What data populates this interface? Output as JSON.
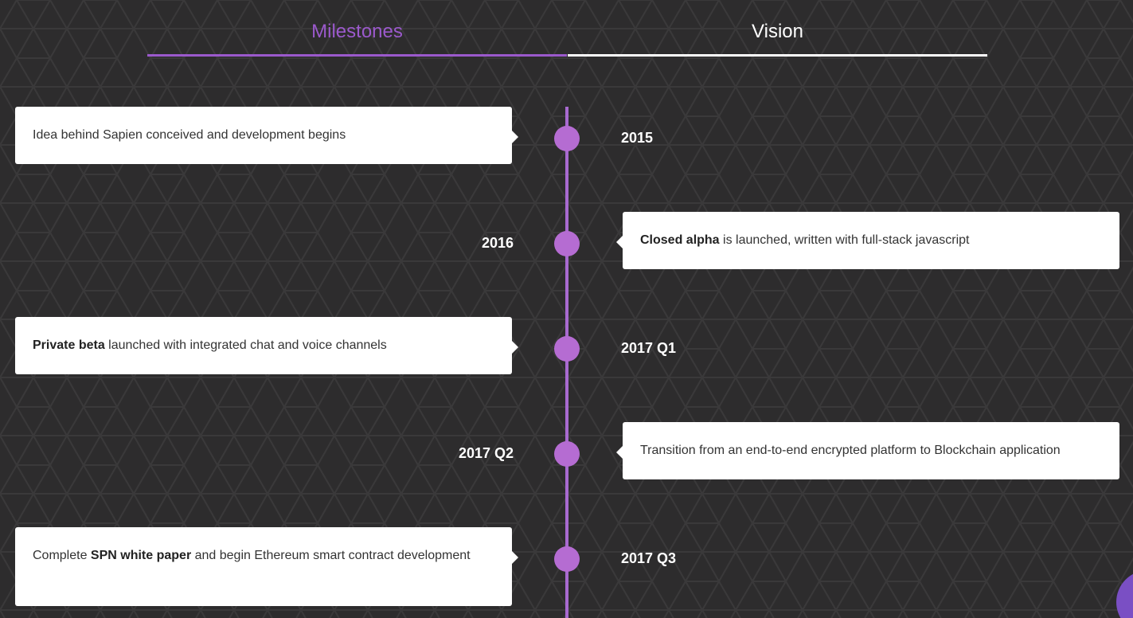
{
  "tabs": [
    {
      "label": "Milestones",
      "active": true
    },
    {
      "label": "Vision",
      "active": false
    }
  ],
  "colors": {
    "background": "#2d2c2d",
    "accent": "#9b59cc",
    "dot": "#b56cd2",
    "line": "#a86ad0"
  },
  "milestones": [
    {
      "year": "2015",
      "side": "left",
      "pre": "",
      "bold": "",
      "text": "Idea behind Sapien conceived and development begins"
    },
    {
      "year": "2016",
      "side": "right",
      "pre": "",
      "bold": "Closed alpha",
      "text": " is launched, written with full-stack javascript"
    },
    {
      "year": "2017 Q1",
      "side": "left",
      "pre": "",
      "bold": "Private beta",
      "text": " launched with integrated chat and voice channels"
    },
    {
      "year": "2017 Q2",
      "side": "right",
      "pre": "",
      "bold": "",
      "text": "Transition from an end-to-end encrypted platform to Blockchain application"
    },
    {
      "year": "2017 Q3",
      "side": "left",
      "pre": "Complete ",
      "bold": "SPN white paper",
      "text": " and begin Ethereum smart contract development"
    }
  ]
}
